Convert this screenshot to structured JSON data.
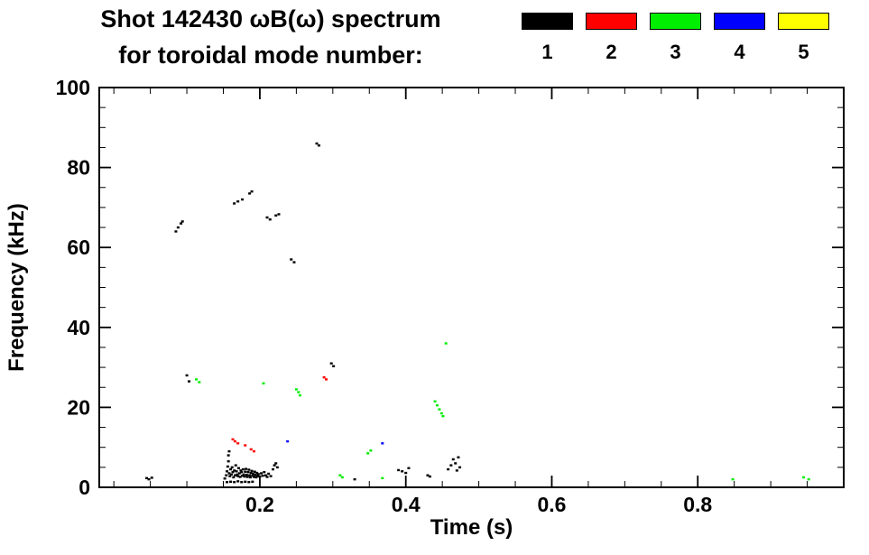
{
  "page": {
    "background": "#ffffff"
  },
  "title": {
    "line1": "Shot 142430 ωB(ω) spectrum",
    "line2": "for toroidal mode number:"
  },
  "legend": {
    "items": [
      {
        "label": "1",
        "color": "#000000"
      },
      {
        "label": "2",
        "color": "#ff0000"
      },
      {
        "label": "3",
        "color": "#00ee00"
      },
      {
        "label": "4",
        "color": "#0000ff"
      },
      {
        "label": "5",
        "color": "#ffff00"
      }
    ]
  },
  "chart_data": {
    "type": "scatter",
    "title": "Shot 142430 ωB(ω) spectrum for toroidal mode number",
    "xlabel": "Time (s)",
    "ylabel": "Frequency (kHz)",
    "xlim": [
      -0.02,
      1.0
    ],
    "ylim": [
      0,
      100
    ],
    "x_major_ticks": [
      0.2,
      0.4,
      0.6,
      0.8
    ],
    "x_tick_labels": [
      "0.2",
      "0.4",
      "0.6",
      "0.8"
    ],
    "x_minor_step": 0.05,
    "y_major_ticks": [
      0,
      20,
      40,
      60,
      80,
      100
    ],
    "y_tick_labels": [
      "0",
      "20",
      "40",
      "60",
      "80",
      "100"
    ],
    "y_minor_step": 5,
    "grid": false,
    "legend_position": "top-right",
    "series": [
      {
        "name": "n=1",
        "color": "#000000",
        "points": [
          [
            0.045,
            2.3
          ],
          [
            0.048,
            2.0
          ],
          [
            0.052,
            2.4
          ],
          [
            0.085,
            64.0
          ],
          [
            0.088,
            65.0
          ],
          [
            0.092,
            66.0
          ],
          [
            0.094,
            66.5
          ],
          [
            0.1,
            28.0
          ],
          [
            0.103,
            26.5
          ],
          [
            0.152,
            2.2
          ],
          [
            0.154,
            3.0
          ],
          [
            0.155,
            4.0
          ],
          [
            0.156,
            5.2
          ],
          [
            0.157,
            6.5
          ],
          [
            0.157,
            8.0
          ],
          [
            0.158,
            9.0
          ],
          [
            0.158,
            3.5
          ],
          [
            0.159,
            2.8
          ],
          [
            0.16,
            4.5
          ],
          [
            0.161,
            3.2
          ],
          [
            0.162,
            5.0
          ],
          [
            0.163,
            3.8
          ],
          [
            0.164,
            2.5
          ],
          [
            0.165,
            4.2
          ],
          [
            0.166,
            3.0
          ],
          [
            0.167,
            5.5
          ],
          [
            0.168,
            4.0
          ],
          [
            0.169,
            3.2
          ],
          [
            0.17,
            2.8
          ],
          [
            0.171,
            4.8
          ],
          [
            0.172,
            3.5
          ],
          [
            0.173,
            2.6
          ],
          [
            0.174,
            4.2
          ],
          [
            0.175,
            3.8
          ],
          [
            0.176,
            2.9
          ],
          [
            0.177,
            4.5
          ],
          [
            0.178,
            3.2
          ],
          [
            0.179,
            2.7
          ],
          [
            0.18,
            3.9
          ],
          [
            0.181,
            4.6
          ],
          [
            0.182,
            3.1
          ],
          [
            0.183,
            2.6
          ],
          [
            0.184,
            3.8
          ],
          [
            0.185,
            4.4
          ],
          [
            0.186,
            3.0
          ],
          [
            0.187,
            2.5
          ],
          [
            0.188,
            3.6
          ],
          [
            0.189,
            4.1
          ],
          [
            0.19,
            2.9
          ],
          [
            0.191,
            3.4
          ],
          [
            0.192,
            2.6
          ],
          [
            0.193,
            3.9
          ],
          [
            0.194,
            3.1
          ],
          [
            0.195,
            2.5
          ],
          [
            0.196,
            3.6
          ],
          [
            0.197,
            2.8
          ],
          [
            0.198,
            3.3
          ],
          [
            0.2,
            2.7
          ],
          [
            0.202,
            3.5
          ],
          [
            0.204,
            2.9
          ],
          [
            0.206,
            3.8
          ],
          [
            0.208,
            3.0
          ],
          [
            0.21,
            2.6
          ],
          [
            0.212,
            3.4
          ],
          [
            0.215,
            2.8
          ],
          [
            0.218,
            4.5
          ],
          [
            0.22,
            5.5
          ],
          [
            0.222,
            6.0
          ],
          [
            0.224,
            5.0
          ],
          [
            0.155,
            1.3
          ],
          [
            0.16,
            1.4
          ],
          [
            0.165,
            1.3
          ],
          [
            0.17,
            1.5
          ],
          [
            0.175,
            1.3
          ],
          [
            0.18,
            1.4
          ],
          [
            0.185,
            1.3
          ],
          [
            0.19,
            1.4
          ],
          [
            0.165,
            71.0
          ],
          [
            0.17,
            71.5
          ],
          [
            0.176,
            72.0
          ],
          [
            0.186,
            73.5
          ],
          [
            0.189,
            74.0
          ],
          [
            0.21,
            67.5
          ],
          [
            0.214,
            67.0
          ],
          [
            0.222,
            68.0
          ],
          [
            0.226,
            68.3
          ],
          [
            0.243,
            57.0
          ],
          [
            0.247,
            56.3
          ],
          [
            0.278,
            86.0
          ],
          [
            0.281,
            85.5
          ],
          [
            0.298,
            31.0
          ],
          [
            0.301,
            30.3
          ],
          [
            0.33,
            2.0
          ],
          [
            0.39,
            4.3
          ],
          [
            0.395,
            4.0
          ],
          [
            0.4,
            3.6
          ],
          [
            0.404,
            4.8
          ],
          [
            0.43,
            3.0
          ],
          [
            0.433,
            2.7
          ],
          [
            0.458,
            4.5
          ],
          [
            0.462,
            5.5
          ],
          [
            0.465,
            7.0
          ],
          [
            0.468,
            6.0
          ],
          [
            0.47,
            4.2
          ],
          [
            0.472,
            7.5
          ],
          [
            0.474,
            5.0
          ]
        ]
      },
      {
        "name": "n=2",
        "color": "#ff0000",
        "points": [
          [
            0.163,
            12.0
          ],
          [
            0.166,
            11.5
          ],
          [
            0.17,
            11.0
          ],
          [
            0.18,
            10.5
          ],
          [
            0.188,
            9.5
          ],
          [
            0.192,
            9.0
          ],
          [
            0.288,
            27.5
          ],
          [
            0.291,
            27.0
          ]
        ]
      },
      {
        "name": "n=3",
        "color": "#00ee00",
        "points": [
          [
            0.113,
            27.0
          ],
          [
            0.117,
            26.3
          ],
          [
            0.205,
            26.0
          ],
          [
            0.25,
            24.5
          ],
          [
            0.253,
            23.8
          ],
          [
            0.255,
            23.0
          ],
          [
            0.31,
            3.0
          ],
          [
            0.313,
            2.5
          ],
          [
            0.348,
            8.5
          ],
          [
            0.352,
            9.2
          ],
          [
            0.368,
            2.3
          ],
          [
            0.44,
            21.5
          ],
          [
            0.443,
            20.5
          ],
          [
            0.446,
            19.5
          ],
          [
            0.449,
            18.5
          ],
          [
            0.451,
            17.8
          ],
          [
            0.455,
            36.0
          ],
          [
            0.848,
            2.0
          ],
          [
            0.945,
            2.5
          ],
          [
            0.952,
            2.0
          ]
        ]
      },
      {
        "name": "n=4",
        "color": "#0000ff",
        "points": [
          [
            0.238,
            11.5
          ],
          [
            0.368,
            11.0
          ]
        ]
      },
      {
        "name": "n=5",
        "color": "#ffff00",
        "points": []
      }
    ]
  }
}
